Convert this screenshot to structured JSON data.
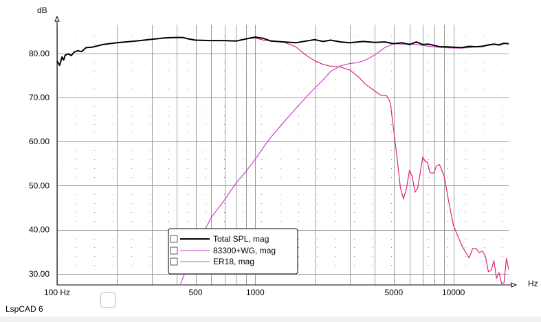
{
  "app_name": "LspCAD 6",
  "chart_data": {
    "type": "line",
    "title": "",
    "ylabel": "dB",
    "xlabel": "Hz",
    "xscale": "log",
    "xlim": [
      100,
      19000
    ],
    "ylim": [
      27.5,
      86.5
    ],
    "grid": true,
    "legend_placement": "lower-left",
    "x_tick_labels": [
      {
        "value": 100,
        "label": "100 Hz"
      },
      {
        "value": 500,
        "label": "500"
      },
      {
        "value": 1000,
        "label": "1000"
      },
      {
        "value": 5000,
        "label": "5000"
      },
      {
        "value": 10000,
        "label": "10000"
      }
    ],
    "y_tick_labels": [
      {
        "value": 30,
        "label": "30.00"
      },
      {
        "value": 40,
        "label": "40.00"
      },
      {
        "value": 50,
        "label": "50.00"
      },
      {
        "value": 60,
        "label": "60.00"
      },
      {
        "value": 70,
        "label": "70.00"
      },
      {
        "value": 80,
        "label": "80.00"
      }
    ],
    "series": [
      {
        "name": "Total SPL, mag",
        "color": "#000000",
        "x": [
          100,
          103,
          106,
          108,
          110,
          114,
          118,
          122,
          127,
          133,
          140,
          150,
          170,
          200,
          250,
          300,
          350,
          400,
          430,
          460,
          500,
          600,
          700,
          800,
          900,
          1000,
          1100,
          1200,
          1400,
          1600,
          1800,
          2000,
          2200,
          2400,
          2700,
          3000,
          3500,
          4000,
          4500,
          5000,
          5500,
          6000,
          6500,
          7000,
          7500,
          8000,
          8500,
          9000,
          10000,
          11000,
          12000,
          13000,
          14000,
          15000,
          16000,
          17000,
          18000,
          19000
        ],
        "y": [
          78.3,
          77.3,
          79.2,
          78.5,
          79.6,
          79.9,
          79.5,
          80.3,
          80.6,
          80.4,
          81.3,
          81.4,
          82.0,
          82.4,
          82.8,
          83.2,
          83.5,
          83.6,
          83.6,
          83.3,
          83.0,
          82.9,
          82.9,
          82.8,
          83.3,
          83.7,
          83.4,
          82.8,
          82.6,
          82.4,
          82.8,
          83.1,
          82.7,
          83.0,
          82.6,
          82.4,
          82.7,
          82.5,
          82.6,
          82.2,
          82.4,
          82.0,
          82.6,
          82.0,
          82.1,
          81.8,
          81.5,
          81.5,
          81.4,
          81.3,
          81.6,
          81.5,
          81.6,
          81.9,
          82.1,
          81.9,
          82.3,
          82.2
        ]
      },
      {
        "name": "83300+WG, mag",
        "color": "#cc44cc",
        "x": [
          420,
          440,
          470,
          500,
          560,
          600,
          700,
          800,
          900,
          1000,
          1100,
          1200,
          1400,
          1600,
          1800,
          2000,
          2200,
          2400,
          2700,
          3000,
          3300,
          3600,
          4000,
          4500,
          5000,
          5500,
          6000,
          6500,
          7000,
          7500,
          8000,
          8500,
          9000,
          10000,
          11000,
          12000,
          13000,
          14000,
          15000,
          16000,
          17000,
          18000,
          19000
        ],
        "y": [
          27.8,
          30.0,
          33.0,
          36.2,
          40.2,
          42.8,
          46.8,
          50.6,
          53.3,
          56.0,
          58.7,
          61.0,
          64.5,
          67.5,
          70.0,
          72.2,
          74.0,
          75.9,
          77.2,
          77.7,
          77.9,
          78.5,
          79.6,
          81.3,
          82.2,
          82.1,
          82.2,
          82.0,
          81.8,
          81.6,
          81.5,
          81.4,
          81.3,
          81.2,
          81.2,
          81.3,
          81.5,
          81.7,
          81.8,
          82.0,
          82.1,
          82.2,
          82.2
        ]
      },
      {
        "name": "ER18, mag",
        "color": "#dd2277",
        "x": [
          900,
          1000,
          1100,
          1200,
          1400,
          1600,
          1800,
          2000,
          2200,
          2400,
          2700,
          3000,
          3300,
          3600,
          4000,
          4300,
          4600,
          4800,
          5000,
          5200,
          5400,
          5600,
          5800,
          6000,
          6200,
          6400,
          6600,
          6800,
          7000,
          7200,
          7400,
          7600,
          7800,
          8000,
          8200,
          8500,
          9000,
          9500,
          10000,
          10500,
          11000,
          11500,
          12000,
          12500,
          13000,
          13500,
          14000,
          14500,
          15000,
          15500,
          16000,
          16500,
          17000,
          17500,
          18000,
          18500,
          19000
        ],
        "y": [
          83.3,
          83.5,
          83.0,
          82.9,
          82.5,
          81.5,
          79.6,
          78.3,
          77.5,
          77.1,
          76.9,
          76.2,
          74.8,
          73.0,
          71.5,
          70.5,
          70.4,
          69.0,
          62.5,
          56.0,
          49.5,
          47.0,
          49.5,
          53.5,
          52.0,
          48.5,
          49.5,
          53.0,
          56.5,
          55.5,
          55.3,
          53.0,
          52.8,
          53.0,
          54.5,
          54.8,
          52.0,
          46.0,
          41.0,
          38.7,
          36.5,
          35.0,
          33.6,
          35.8,
          35.8,
          34.8,
          35.2,
          34.0,
          30.5,
          30.8,
          33.0,
          29.0,
          30.3,
          27.8,
          28.0,
          33.5,
          31.0
        ]
      }
    ]
  }
}
